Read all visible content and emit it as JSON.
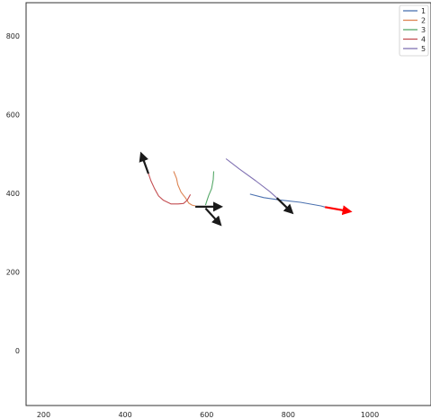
{
  "chart_data": {
    "type": "line",
    "title": "",
    "xlabel": "",
    "ylabel": "",
    "xlim": [
      157,
      1150
    ],
    "ylim": [
      -140,
      885
    ],
    "xticks": [
      200,
      400,
      600,
      800,
      1000
    ],
    "yticks": [
      0,
      200,
      400,
      600,
      800
    ],
    "grid": false,
    "legend_position": "top-right",
    "series": [
      {
        "name": "1",
        "color": "#4c72b0",
        "points": [
          [
            706,
            398
          ],
          [
            740,
            389
          ],
          [
            780,
            383
          ],
          [
            830,
            377
          ],
          [
            880,
            368
          ],
          [
            890,
            365
          ]
        ]
      },
      {
        "name": "2",
        "color": "#dd8452",
        "points": [
          [
            519,
            456
          ],
          [
            526,
            438
          ],
          [
            529,
            422
          ],
          [
            537,
            403
          ],
          [
            548,
            388
          ],
          [
            556,
            375
          ],
          [
            564,
            370
          ],
          [
            572,
            368
          ]
        ]
      },
      {
        "name": "3",
        "color": "#55a868",
        "points": [
          [
            617,
            456
          ],
          [
            616,
            435
          ],
          [
            612,
            412
          ],
          [
            605,
            395
          ],
          [
            600,
            380
          ],
          [
            597,
            370
          ]
        ]
      },
      {
        "name": "4",
        "color": "#c44e52",
        "points": [
          [
            560,
            397
          ],
          [
            552,
            382
          ],
          [
            543,
            374
          ],
          [
            530,
            373
          ],
          [
            512,
            373
          ],
          [
            494,
            382
          ],
          [
            482,
            393
          ],
          [
            472,
            412
          ],
          [
            463,
            432
          ],
          [
            457,
            450
          ]
        ]
      },
      {
        "name": "5",
        "color": "#8172b3",
        "points": [
          [
            647,
            488
          ],
          [
            680,
            462
          ],
          [
            720,
            432
          ],
          [
            755,
            404
          ],
          [
            772,
            388
          ]
        ]
      }
    ],
    "arrows": [
      {
        "color": "#1a1a1a",
        "from": [
          457,
          450
        ],
        "to": [
          440,
          499
        ]
      },
      {
        "color": "#1a1a1a",
        "from": [
          572,
          366
        ],
        "to": [
          633,
          366
        ]
      },
      {
        "color": "#1a1a1a",
        "from": [
          597,
          362
        ],
        "to": [
          632,
          322
        ]
      },
      {
        "color": "#1a1a1a",
        "from": [
          772,
          388
        ],
        "to": [
          808,
          352
        ]
      },
      {
        "color": "#ff0000",
        "from": [
          890,
          365
        ],
        "to": [
          950,
          354
        ]
      }
    ]
  }
}
